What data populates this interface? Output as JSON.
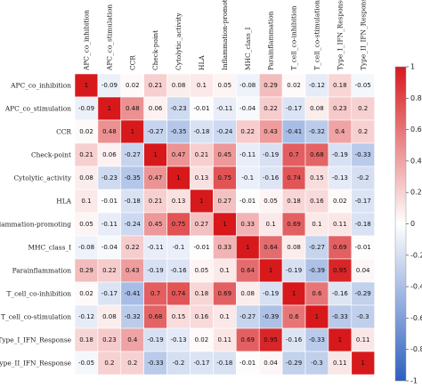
{
  "chart_data": {
    "type": "heatmap",
    "title": "",
    "variables": [
      "APC_co_inhibition",
      "APC_co_stimulation",
      "CCR",
      "Check-point",
      "Cytolytic_activity",
      "HLA",
      "Inflammation-promoting",
      "MHC_class_I",
      "Parainflammation",
      "T_cell_co-inhibition",
      "T_cell_co-stimulation",
      "Type_I_IFN_Response",
      "Type_II_IFN_Response"
    ],
    "values": [
      [
        1,
        -0.09,
        0.02,
        0.21,
        0.08,
        0.1,
        0.05,
        -0.08,
        0.29,
        0.02,
        -0.12,
        0.18,
        -0.05
      ],
      [
        -0.09,
        1,
        0.48,
        0.06,
        -0.23,
        -0.01,
        -0.11,
        -0.04,
        0.22,
        -0.17,
        0.08,
        0.23,
        0.2
      ],
      [
        0.02,
        0.48,
        1,
        -0.27,
        -0.35,
        -0.18,
        -0.24,
        0.22,
        0.43,
        -0.41,
        -0.32,
        0.4,
        0.2
      ],
      [
        0.21,
        0.06,
        -0.27,
        1,
        0.47,
        0.21,
        0.45,
        -0.11,
        -0.19,
        0.7,
        0.68,
        -0.19,
        -0.33
      ],
      [
        0.08,
        -0.23,
        -0.35,
        0.47,
        1,
        0.13,
        0.75,
        -0.1,
        -0.16,
        0.74,
        0.15,
        -0.13,
        -0.2
      ],
      [
        0.1,
        -0.01,
        -0.18,
        0.21,
        0.13,
        1,
        0.27,
        -0.01,
        0.05,
        0.18,
        0.16,
        0.02,
        -0.17
      ],
      [
        0.05,
        -0.11,
        -0.24,
        0.45,
        0.75,
        0.27,
        1,
        0.33,
        0.1,
        0.69,
        0.1,
        0.11,
        -0.18
      ],
      [
        -0.08,
        -0.04,
        0.22,
        -0.11,
        -0.1,
        -0.01,
        0.33,
        1,
        0.64,
        0.08,
        -0.27,
        0.69,
        -0.01
      ],
      [
        0.29,
        0.22,
        0.43,
        -0.19,
        -0.16,
        0.05,
        0.1,
        0.64,
        1,
        -0.19,
        -0.39,
        0.95,
        0.04
      ],
      [
        0.02,
        -0.17,
        -0.41,
        0.7,
        0.74,
        0.18,
        0.69,
        0.08,
        -0.19,
        1,
        0.6,
        -0.16,
        -0.29
      ],
      [
        -0.12,
        0.08,
        -0.32,
        0.68,
        0.15,
        0.16,
        0.1,
        -0.27,
        -0.39,
        0.6,
        1,
        -0.33,
        -0.3
      ],
      [
        0.18,
        0.23,
        0.4,
        -0.19,
        -0.13,
        0.02,
        0.11,
        0.69,
        0.95,
        -0.16,
        -0.33,
        1,
        0.11
      ],
      [
        -0.05,
        0.2,
        0.2,
        -0.33,
        -0.2,
        -0.17,
        -0.18,
        -0.01,
        0.04,
        -0.29,
        -0.3,
        0.11,
        1
      ]
    ],
    "colorbar": {
      "range": [
        -1,
        1
      ],
      "ticks": [
        1,
        0.8,
        0.6,
        0.4,
        0.2,
        0,
        -0.2,
        -0.4,
        -0.6,
        -0.8,
        -1
      ],
      "colors": {
        "positive": "#d7191c",
        "zero": "#ffffff",
        "negative": "#2c5fbf"
      }
    },
    "grid": true,
    "legend_position": "right"
  }
}
